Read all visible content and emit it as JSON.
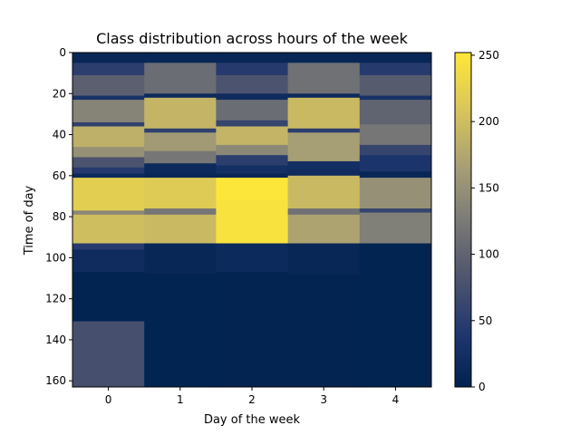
{
  "chart_data": {
    "type": "heatmap",
    "title": "Class distribution across hours of the week",
    "xlabel": "Day of the week",
    "ylabel": "Time of day",
    "x_categories": [
      "0",
      "1",
      "2",
      "3",
      "4"
    ],
    "ylim": [
      0,
      163
    ],
    "y_ticks": [
      "0",
      "20",
      "40",
      "60",
      "80",
      "100",
      "120",
      "140",
      "160"
    ],
    "colormap": "cividis",
    "colorbar": {
      "range": [
        0,
        252
      ],
      "ticks": [
        "0",
        "50",
        "100",
        "150",
        "200",
        "250"
      ]
    },
    "rows_per_hour_band": "each row = one time step",
    "columns": [
      {
        "day": "0",
        "segments": [
          {
            "from": 0,
            "to": 5,
            "value": 10
          },
          {
            "from": 5,
            "to": 11,
            "value": 50
          },
          {
            "from": 11,
            "to": 21,
            "value": 95
          },
          {
            "from": 21,
            "to": 23,
            "value": 30
          },
          {
            "from": 23,
            "to": 34,
            "value": 135
          },
          {
            "from": 34,
            "to": 36,
            "value": 55
          },
          {
            "from": 36,
            "to": 46,
            "value": 185
          },
          {
            "from": 46,
            "to": 51,
            "value": 150
          },
          {
            "from": 51,
            "to": 56,
            "value": 80
          },
          {
            "from": 56,
            "to": 59,
            "value": 45
          },
          {
            "from": 59,
            "to": 61,
            "value": 15
          },
          {
            "from": 61,
            "to": 77,
            "value": 220
          },
          {
            "from": 77,
            "to": 79,
            "value": 140
          },
          {
            "from": 79,
            "to": 93,
            "value": 200
          },
          {
            "from": 93,
            "to": 96,
            "value": 45
          },
          {
            "from": 96,
            "to": 107,
            "value": 20
          },
          {
            "from": 107,
            "to": 131,
            "value": 3
          },
          {
            "from": 131,
            "to": 163,
            "value": 75
          }
        ]
      },
      {
        "day": "1",
        "segments": [
          {
            "from": 0,
            "to": 5,
            "value": 10
          },
          {
            "from": 5,
            "to": 20,
            "value": 110
          },
          {
            "from": 20,
            "to": 22,
            "value": 15
          },
          {
            "from": 22,
            "to": 37,
            "value": 190
          },
          {
            "from": 37,
            "to": 39,
            "value": 55
          },
          {
            "from": 39,
            "to": 48,
            "value": 160
          },
          {
            "from": 48,
            "to": 54,
            "value": 120
          },
          {
            "from": 54,
            "to": 59,
            "value": 15
          },
          {
            "from": 59,
            "to": 61,
            "value": 10
          },
          {
            "from": 61,
            "to": 76,
            "value": 215
          },
          {
            "from": 76,
            "to": 79,
            "value": 120
          },
          {
            "from": 79,
            "to": 93,
            "value": 195
          },
          {
            "from": 93,
            "to": 108,
            "value": 10
          },
          {
            "from": 108,
            "to": 163,
            "value": 3
          }
        ]
      },
      {
        "day": "2",
        "segments": [
          {
            "from": 0,
            "to": 5,
            "value": 10
          },
          {
            "from": 5,
            "to": 11,
            "value": 45
          },
          {
            "from": 11,
            "to": 20,
            "value": 80
          },
          {
            "from": 20,
            "to": 23,
            "value": 20
          },
          {
            "from": 23,
            "to": 33,
            "value": 110
          },
          {
            "from": 33,
            "to": 36,
            "value": 60
          },
          {
            "from": 36,
            "to": 45,
            "value": 190
          },
          {
            "from": 45,
            "to": 50,
            "value": 140
          },
          {
            "from": 50,
            "to": 55,
            "value": 50
          },
          {
            "from": 55,
            "to": 59,
            "value": 25
          },
          {
            "from": 59,
            "to": 61,
            "value": 10
          },
          {
            "from": 61,
            "to": 72,
            "value": 250
          },
          {
            "from": 72,
            "to": 93,
            "value": 245
          },
          {
            "from": 93,
            "to": 107,
            "value": 15
          },
          {
            "from": 107,
            "to": 163,
            "value": 4
          }
        ]
      },
      {
        "day": "3",
        "segments": [
          {
            "from": 0,
            "to": 5,
            "value": 10
          },
          {
            "from": 5,
            "to": 20,
            "value": 115
          },
          {
            "from": 20,
            "to": 22,
            "value": 15
          },
          {
            "from": 22,
            "to": 37,
            "value": 195
          },
          {
            "from": 37,
            "to": 39,
            "value": 50
          },
          {
            "from": 39,
            "to": 53,
            "value": 165
          },
          {
            "from": 53,
            "to": 57,
            "value": 25
          },
          {
            "from": 57,
            "to": 60,
            "value": 20
          },
          {
            "from": 60,
            "to": 76,
            "value": 195
          },
          {
            "from": 76,
            "to": 79,
            "value": 115
          },
          {
            "from": 79,
            "to": 93,
            "value": 170
          },
          {
            "from": 93,
            "to": 108,
            "value": 10
          },
          {
            "from": 108,
            "to": 163,
            "value": 4
          }
        ]
      },
      {
        "day": "4",
        "segments": [
          {
            "from": 0,
            "to": 5,
            "value": 10
          },
          {
            "from": 5,
            "to": 11,
            "value": 45
          },
          {
            "from": 11,
            "to": 21,
            "value": 90
          },
          {
            "from": 21,
            "to": 23,
            "value": 30
          },
          {
            "from": 23,
            "to": 35,
            "value": 100
          },
          {
            "from": 35,
            "to": 45,
            "value": 120
          },
          {
            "from": 45,
            "to": 50,
            "value": 60
          },
          {
            "from": 50,
            "to": 58,
            "value": 35
          },
          {
            "from": 58,
            "to": 61,
            "value": 10
          },
          {
            "from": 61,
            "to": 76,
            "value": 150
          },
          {
            "from": 76,
            "to": 78,
            "value": 60
          },
          {
            "from": 78,
            "to": 93,
            "value": 130
          },
          {
            "from": 93,
            "to": 163,
            "value": 3
          }
        ]
      }
    ]
  }
}
